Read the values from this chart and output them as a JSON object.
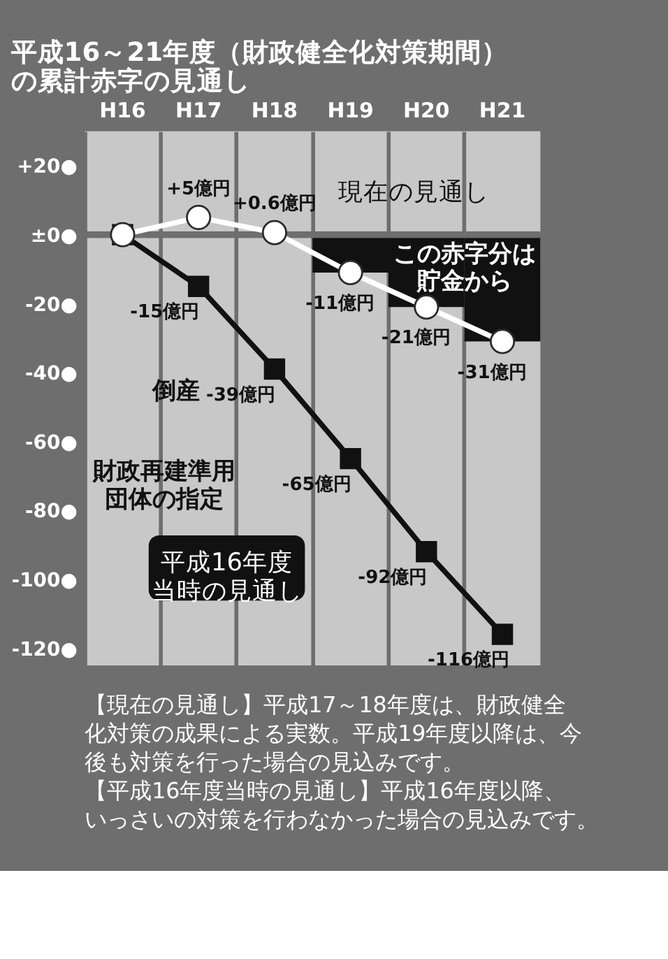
{
  "chart_data": {
    "type": "line",
    "title": "平成16～21年度（財政健全化対策期間）の累計赤字の見通し",
    "categories": [
      "H16",
      "H17",
      "H18",
      "H19",
      "H20",
      "H21"
    ],
    "series": [
      {
        "type": "bar",
        "color": "#111111",
        "values": [
          null,
          null,
          null,
          -11,
          -21,
          -31
        ]
      },
      {
        "name": "平成16年度当時の見通し",
        "color": "#111111",
        "marker": "square",
        "line_style": "solid",
        "values": [
          0,
          -15,
          -39,
          -65,
          -92,
          -116
        ],
        "value_labels": [
          null,
          "-15億円",
          "-39億円",
          "-65億円",
          "-92億円",
          "-116億円"
        ]
      },
      {
        "name": "現在の見通し",
        "color": "#ffffff",
        "marker": "circle",
        "line_style": "solid",
        "values": [
          0,
          5,
          0.6,
          -11,
          -21,
          -31
        ],
        "value_labels": [
          null,
          "+5億円",
          "+0.6億円",
          "-11億円",
          "-21億円",
          "-31億円"
        ]
      }
    ],
    "ylim": [
      -125,
      30
    ],
    "yticks": [
      {
        "value": 20,
        "label": "+20●"
      },
      {
        "value": 0,
        "label": "±0●"
      },
      {
        "value": -20,
        "label": "-20●"
      },
      {
        "value": -40,
        "label": "-40●"
      },
      {
        "value": -60,
        "label": "-60●"
      },
      {
        "value": -80,
        "label": "-80●"
      },
      {
        "value": -100,
        "label": "-100●"
      },
      {
        "value": -120,
        "label": "-120●"
      }
    ],
    "grid": "x",
    "ref_lines": [
      {
        "axis": "y",
        "value": 0,
        "color": "#6e6e6e"
      }
    ],
    "annotations": [
      "この赤字分は貯金から",
      "倒産",
      "財政再建準用団体の指定",
      "【現在の見通し】平成17～18年度は、財政健全化対策の成果による実数。平成19年度以降は、今後も対策を行った場合の見込みです。",
      "【平成16年度当時の見通し】平成16年度以降、いっさいの対策を行わなかった場合の見込みです。"
    ]
  }
}
